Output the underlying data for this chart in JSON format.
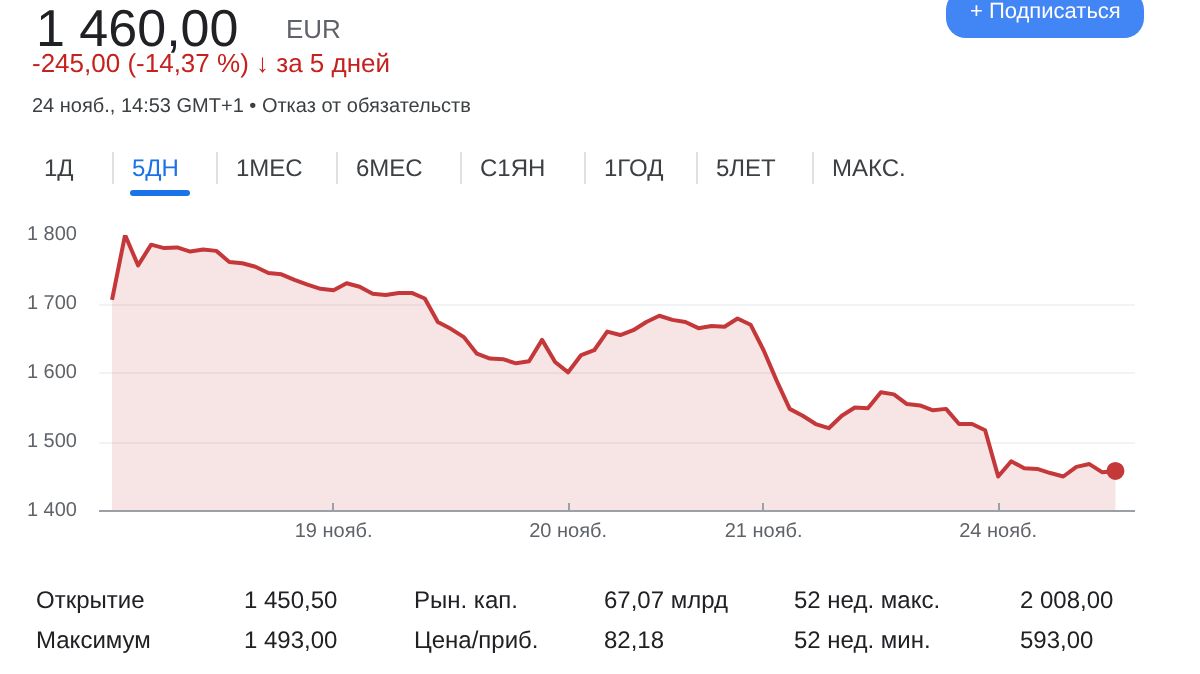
{
  "chart_data": {
    "type": "area",
    "title": "1 460,00",
    "annotations": [
      "EUR",
      "-245,00 (-14,37 %) ↓ за 5 дней",
      "24 нояб., 14:53 GMT+1 • Отказ от обязательств",
      "+ Подписаться",
      "1Д",
      "5ДН",
      "1МЕС",
      "6МЕС",
      "С1ЯН",
      "1ГОД",
      "5ЛЕТ",
      "МАКС.",
      "Открытие",
      "1 450,50",
      "Рын. кап.",
      "67,07 млрд",
      "52 нед. макс.",
      "2 008,00",
      "Максимум",
      "1 493,00",
      "Цена/приб.",
      "82,18",
      "52 нед. мин.",
      "593,00"
    ],
    "categories": [
      null,
      null,
      null,
      null,
      null,
      null,
      null,
      null,
      null,
      null,
      null,
      null,
      null,
      null,
      null,
      null,
      null,
      "19 нояб.",
      null,
      null,
      null,
      null,
      null,
      null,
      null,
      null,
      null,
      null,
      null,
      null,
      null,
      null,
      null,
      null,
      null,
      "20 нояб.",
      null,
      null,
      null,
      null,
      null,
      null,
      null,
      null,
      null,
      null,
      null,
      null,
      null,
      null,
      "21 нояб.",
      null,
      null,
      null,
      null,
      null,
      null,
      null,
      null,
      null,
      null,
      null,
      null,
      null,
      null,
      null,
      null,
      null,
      "24 нояб.",
      null,
      null,
      null,
      null,
      null,
      null,
      null,
      null,
      null
    ],
    "ylim": [
      1400,
      1800
    ],
    "yticks": [
      {
        "value": 1400,
        "label": "1 400"
      },
      {
        "value": 1500,
        "label": "1 500"
      },
      {
        "value": 1600,
        "label": "1 600"
      },
      {
        "value": 1700,
        "label": "1 700"
      },
      {
        "value": 1800,
        "label": "1 800"
      }
    ],
    "grid": "y",
    "marker": "none",
    "series": [
      {
        "color": "#c5383a",
        "values": [
          1706,
          1800,
          1756,
          1786,
          1781,
          1782,
          1776,
          1779,
          1777,
          1761,
          1759,
          1754,
          1745,
          1743,
          1735,
          1728,
          1722,
          1720,
          1730,
          1725,
          1715,
          1713,
          1716,
          1716,
          1708,
          1674,
          1664,
          1652,
          1628,
          1621,
          1620,
          1614,
          1617,
          1648,
          1616,
          1601,
          1626,
          1633,
          1660,
          1655,
          1662,
          1674,
          1683,
          1677,
          1674,
          1665,
          1668,
          1667,
          1679,
          1670,
          1633,
          1589,
          1548,
          1538,
          1526,
          1520,
          1538,
          1550,
          1549,
          1572,
          1569,
          1555,
          1553,
          1546,
          1548,
          1526,
          1526,
          1517,
          1450,
          1472,
          1462,
          1461,
          1455,
          1450,
          1464,
          1468,
          1456,
          1458
        ]
      },
      {
        "type": "scatter",
        "color": "#c5383a",
        "marker": "circle",
        "values": [
          null,
          null,
          null,
          null,
          null,
          null,
          null,
          null,
          null,
          null,
          null,
          null,
          null,
          null,
          null,
          null,
          null,
          null,
          null,
          null,
          null,
          null,
          null,
          null,
          null,
          null,
          null,
          null,
          null,
          null,
          null,
          null,
          null,
          null,
          null,
          null,
          null,
          null,
          null,
          null,
          null,
          null,
          null,
          null,
          null,
          null,
          null,
          null,
          null,
          null,
          null,
          null,
          null,
          null,
          null,
          null,
          null,
          null,
          null,
          null,
          null,
          null,
          null,
          null,
          null,
          null,
          null,
          null,
          null,
          null,
          null,
          null,
          null,
          null,
          null,
          null,
          null,
          1458
        ]
      }
    ]
  }
}
